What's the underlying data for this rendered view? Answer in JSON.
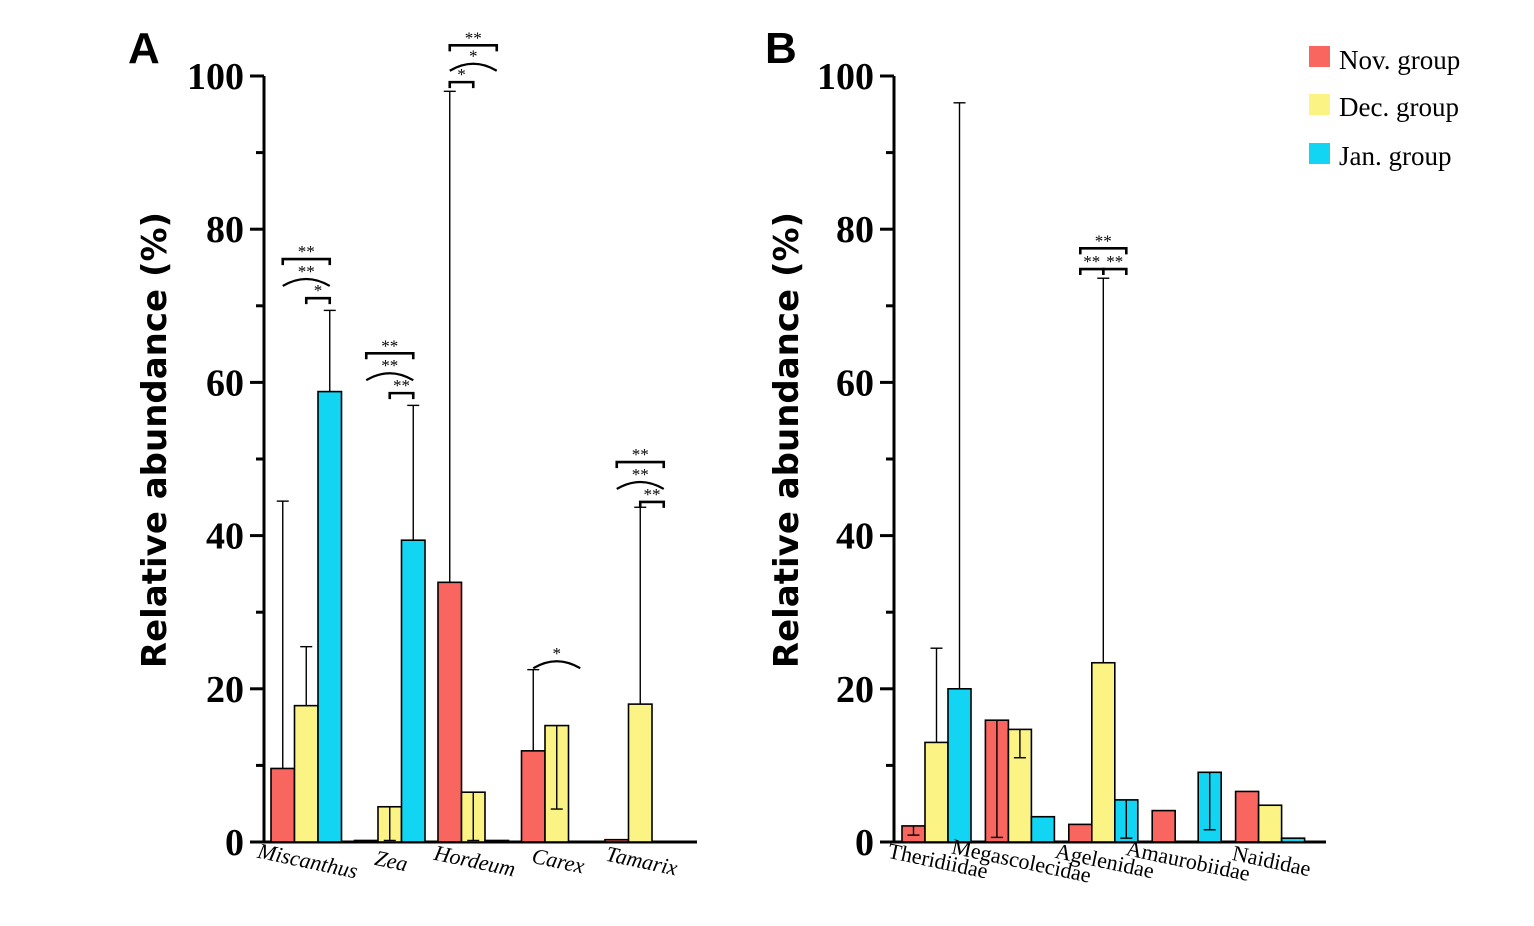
{
  "colors": {
    "nov": "#f8665f",
    "dec": "#fbf485",
    "jan": "#12d5f4"
  },
  "legend": [
    {
      "key": "nov",
      "label": "Nov. group"
    },
    {
      "key": "dec",
      "label": "Dec. group"
    },
    {
      "key": "jan",
      "label": "Jan. group"
    }
  ],
  "chart_data": [
    {
      "type": "bar",
      "panel_label": "A",
      "ylabel": "Relative abundance (%)",
      "ylim": [
        0,
        100
      ],
      "yticks": [
        0,
        20,
        40,
        60,
        80,
        100
      ],
      "categories": [
        "Miscanthus",
        "Zea",
        "Hordeum",
        "Carex",
        "Tamarix"
      ],
      "category_style": "italic",
      "series": [
        {
          "name": "Nov. group",
          "key": "nov",
          "values": [
            9.6,
            0.2,
            33.9,
            11.9,
            0.3
          ],
          "err_high": [
            44.5,
            null,
            98.0,
            22.5,
            null
          ],
          "err_low": [
            null,
            null,
            null,
            null,
            null
          ]
        },
        {
          "name": "Dec. group",
          "key": "dec",
          "values": [
            17.8,
            4.6,
            6.5,
            15.2,
            18.0
          ],
          "err_high": [
            25.5,
            null,
            null,
            null,
            43.7
          ],
          "err_low": [
            null,
            0.2,
            0.2,
            4.3,
            null
          ]
        },
        {
          "name": "Jan. group",
          "key": "jan",
          "values": [
            58.8,
            39.4,
            0.2,
            0,
            0
          ],
          "err_high": [
            69.4,
            57.0,
            null,
            null,
            null
          ],
          "err_low": [
            null,
            null,
            null,
            null,
            null
          ]
        }
      ],
      "significance": [
        {
          "cat": 0,
          "from": "nov",
          "to": "jan",
          "label": "**",
          "style": "bracket",
          "y": 76.1
        },
        {
          "cat": 0,
          "from": "nov",
          "to": "jan",
          "label": "**",
          "style": "arc",
          "y": 73.5
        },
        {
          "cat": 0,
          "from": "dec",
          "to": "jan",
          "label": "*",
          "style": "bracket",
          "y": 71.0
        },
        {
          "cat": 1,
          "from": "nov",
          "to": "jan",
          "label": "**",
          "style": "bracket",
          "y": 63.8
        },
        {
          "cat": 1,
          "from": "nov",
          "to": "jan",
          "label": "**",
          "style": "arc",
          "y": 61.2
        },
        {
          "cat": 1,
          "from": "dec",
          "to": "jan",
          "label": "**",
          "style": "bracket",
          "y": 58.6
        },
        {
          "cat": 2,
          "from": "nov",
          "to": "jan",
          "label": "**",
          "style": "bracket",
          "y": 104.0
        },
        {
          "cat": 2,
          "from": "nov",
          "to": "jan",
          "label": "*",
          "style": "arc",
          "y": 101.6
        },
        {
          "cat": 2,
          "from": "nov",
          "to": "dec",
          "label": "*",
          "style": "bracket",
          "y": 99.2
        },
        {
          "cat": 3,
          "from": "nov",
          "to": "jan",
          "label": "*",
          "style": "arc",
          "y": 23.6
        },
        {
          "cat": 4,
          "from": "nov",
          "to": "jan",
          "label": "**",
          "style": "bracket",
          "y": 49.6
        },
        {
          "cat": 4,
          "from": "nov",
          "to": "jan",
          "label": "**",
          "style": "arc",
          "y": 47.0
        },
        {
          "cat": 4,
          "from": "dec",
          "to": "jan",
          "label": "**",
          "style": "bracket",
          "y": 44.4
        }
      ]
    },
    {
      "type": "bar",
      "panel_label": "B",
      "ylabel": "Relative abundance (%)",
      "ylim": [
        0,
        100
      ],
      "yticks": [
        0,
        20,
        40,
        60,
        80,
        100
      ],
      "categories": [
        "Theridiidae",
        "Megascolecidae",
        "Agelenidae",
        "Amaurobiidae",
        "Naididae"
      ],
      "category_style": "normal",
      "series": [
        {
          "name": "Nov. group",
          "key": "nov",
          "values": [
            2.1,
            15.9,
            2.3,
            4.1,
            6.6
          ],
          "err_high": [
            null,
            null,
            null,
            null,
            null
          ],
          "err_low": [
            0.9,
            0.6,
            null,
            null,
            null
          ]
        },
        {
          "name": "Dec. group",
          "key": "dec",
          "values": [
            13.0,
            14.7,
            23.4,
            0,
            4.8
          ],
          "err_high": [
            25.3,
            null,
            73.6,
            null,
            null
          ],
          "err_low": [
            null,
            11.0,
            null,
            null,
            null
          ]
        },
        {
          "name": "Jan. group",
          "key": "jan",
          "values": [
            20.0,
            3.3,
            5.5,
            9.1,
            0.5
          ],
          "err_high": [
            96.5,
            null,
            null,
            null,
            null
          ],
          "err_low": [
            null,
            null,
            0.5,
            1.6,
            null
          ]
        }
      ],
      "significance": [
        {
          "cat": 2,
          "from": "nov",
          "to": "jan",
          "label": "**",
          "style": "bracket",
          "y": 77.5
        },
        {
          "cat": 2,
          "from": "nov",
          "to": "dec",
          "label": "**",
          "style": "bracket",
          "y": 74.8
        },
        {
          "cat": 2,
          "from": "dec",
          "to": "jan",
          "label": "**",
          "style": "bracket",
          "y": 74.8
        }
      ]
    }
  ]
}
